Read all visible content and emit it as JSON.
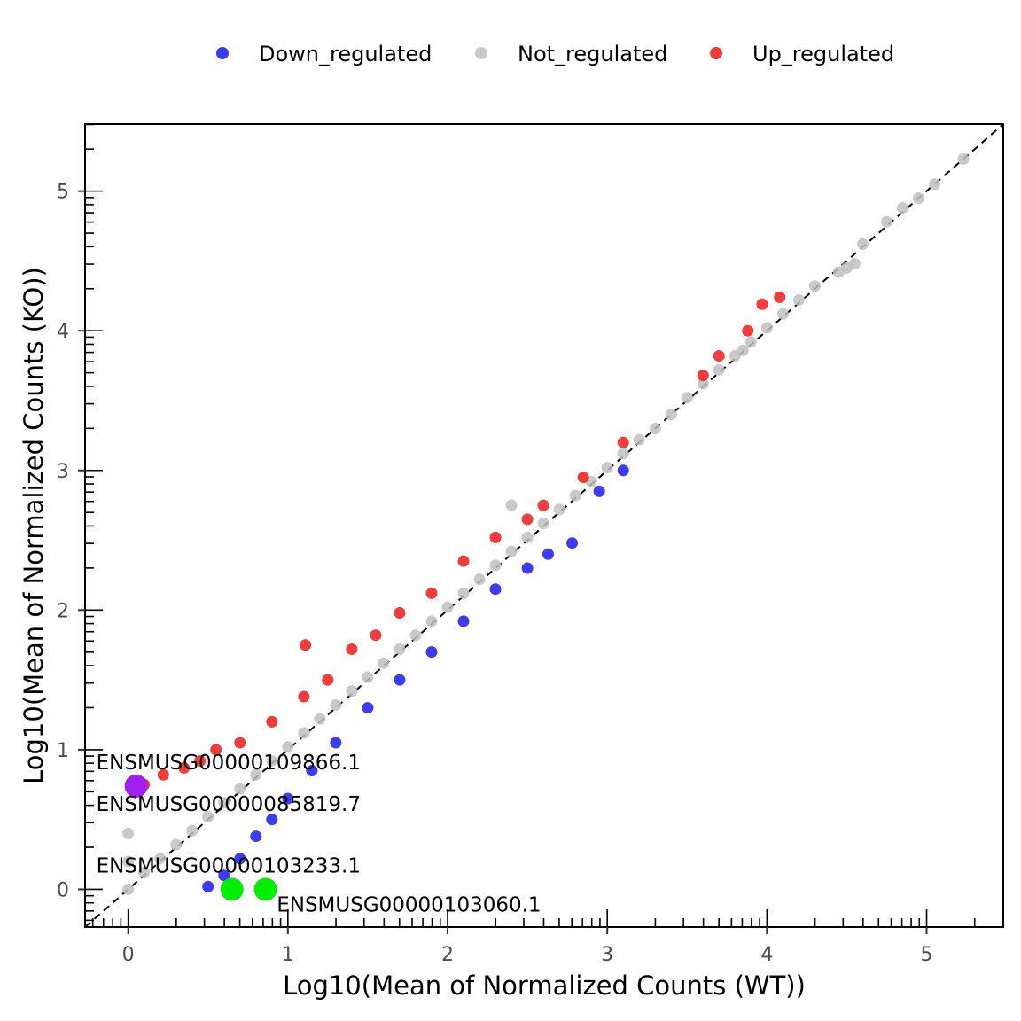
{
  "chart_data": {
    "type": "scatter",
    "xlabel": "Log10(Mean of Normalized Counts (WT))",
    "ylabel": "Log10(Mean of Normalized Counts (KO))",
    "xlim": [
      -0.27,
      5.48
    ],
    "ylim": [
      -0.27,
      5.48
    ],
    "x_ticks": [
      0,
      1,
      2,
      3,
      4,
      5
    ],
    "y_ticks": [
      0,
      1,
      2,
      3,
      4,
      5
    ],
    "x_tick_labels": [
      "0",
      "1",
      "2",
      "3",
      "4",
      "5"
    ],
    "y_tick_labels": [
      "0",
      "1",
      "2",
      "3",
      "4",
      "5"
    ],
    "log_minor_ticks": true,
    "grid": false,
    "reference_line": {
      "slope": 1,
      "intercept": 0,
      "style": "dashed",
      "color": "#000000"
    },
    "legend": {
      "placement": "top",
      "entries": [
        {
          "label": "Down_regulated",
          "color": "#1a1aee"
        },
        {
          "label": "Not_regulated",
          "color": "#c0c0c0"
        },
        {
          "label": "Up_regulated",
          "color": "#ee1a1a"
        }
      ]
    },
    "series": [
      {
        "name": "Not_regulated",
        "color": "#c0c0c0",
        "points": [
          [
            5.23,
            5.23
          ],
          [
            5.05,
            5.05
          ],
          [
            4.95,
            4.95
          ],
          [
            4.85,
            4.88
          ],
          [
            4.75,
            4.78
          ],
          [
            4.6,
            4.62
          ],
          [
            4.55,
            4.48
          ],
          [
            4.5,
            4.45
          ],
          [
            4.45,
            4.42
          ],
          [
            4.3,
            4.32
          ],
          [
            4.2,
            4.22
          ],
          [
            4.1,
            4.12
          ],
          [
            4.0,
            4.02
          ],
          [
            3.9,
            3.92
          ],
          [
            3.85,
            3.86
          ],
          [
            3.8,
            3.82
          ],
          [
            3.7,
            3.72
          ],
          [
            3.6,
            3.62
          ],
          [
            3.5,
            3.52
          ],
          [
            3.4,
            3.4
          ],
          [
            3.3,
            3.3
          ],
          [
            3.2,
            3.22
          ],
          [
            3.1,
            3.12
          ],
          [
            3.0,
            3.02
          ],
          [
            2.9,
            2.92
          ],
          [
            2.8,
            2.82
          ],
          [
            2.7,
            2.72
          ],
          [
            2.6,
            2.62
          ],
          [
            2.5,
            2.52
          ],
          [
            2.4,
            2.75
          ],
          [
            2.4,
            2.42
          ],
          [
            2.3,
            2.32
          ],
          [
            2.2,
            2.22
          ],
          [
            2.1,
            2.12
          ],
          [
            2.0,
            2.02
          ],
          [
            1.9,
            1.92
          ],
          [
            1.8,
            1.82
          ],
          [
            1.7,
            1.72
          ],
          [
            1.6,
            1.62
          ],
          [
            1.5,
            1.52
          ],
          [
            1.4,
            1.42
          ],
          [
            1.3,
            1.32
          ],
          [
            1.2,
            1.22
          ],
          [
            1.1,
            1.12
          ],
          [
            1.0,
            1.02
          ],
          [
            0.9,
            0.92
          ],
          [
            0.8,
            0.82
          ],
          [
            0.7,
            0.72
          ],
          [
            0.6,
            0.62
          ],
          [
            0.5,
            0.52
          ],
          [
            0.4,
            0.42
          ],
          [
            0.3,
            0.32
          ],
          [
            0.2,
            0.22
          ],
          [
            0.1,
            0.12
          ],
          [
            0.0,
            0.4
          ],
          [
            0.0,
            0.2
          ],
          [
            0.0,
            0.0
          ]
        ]
      },
      {
        "name": "Up_regulated",
        "color": "#ee1a1a",
        "points": [
          [
            4.08,
            4.24
          ],
          [
            3.97,
            4.19
          ],
          [
            3.88,
            4.0
          ],
          [
            3.7,
            3.82
          ],
          [
            3.6,
            3.68
          ],
          [
            3.1,
            3.2
          ],
          [
            2.85,
            2.95
          ],
          [
            2.6,
            2.75
          ],
          [
            2.5,
            2.65
          ],
          [
            2.3,
            2.52
          ],
          [
            2.1,
            2.35
          ],
          [
            1.9,
            2.12
          ],
          [
            1.7,
            1.98
          ],
          [
            1.55,
            1.82
          ],
          [
            1.4,
            1.72
          ],
          [
            1.11,
            1.75
          ],
          [
            1.25,
            1.5
          ],
          [
            1.1,
            1.38
          ],
          [
            0.9,
            1.2
          ],
          [
            0.7,
            1.05
          ],
          [
            0.55,
            1.0
          ],
          [
            0.45,
            0.92
          ],
          [
            0.35,
            0.87
          ],
          [
            0.22,
            0.82
          ],
          [
            0.1,
            0.75
          ],
          [
            0.05,
            0.7
          ]
        ]
      },
      {
        "name": "Down_regulated",
        "color": "#1a1aee",
        "points": [
          [
            3.1,
            3.0
          ],
          [
            2.95,
            2.85
          ],
          [
            2.78,
            2.48
          ],
          [
            2.63,
            2.4
          ],
          [
            2.5,
            2.3
          ],
          [
            2.3,
            2.15
          ],
          [
            2.1,
            1.92
          ],
          [
            1.9,
            1.7
          ],
          [
            1.7,
            1.5
          ],
          [
            1.5,
            1.3
          ],
          [
            1.3,
            1.05
          ],
          [
            1.15,
            0.85
          ],
          [
            1.0,
            0.65
          ],
          [
            0.9,
            0.5
          ],
          [
            0.8,
            0.38
          ],
          [
            0.7,
            0.22
          ],
          [
            0.6,
            0.1
          ],
          [
            0.5,
            0.02
          ]
        ]
      },
      {
        "name": "",
        "color": "#a020f0",
        "points": [
          [
            0.05,
            0.74
          ]
        ]
      },
      {
        "name": "",
        "color": "#00ee00",
        "points": [
          [
            0.65,
            0.0
          ],
          [
            0.86,
            0.0
          ]
        ]
      }
    ],
    "annotations": [
      {
        "text": "ENSMUSG00000109866.1",
        "x": -0.2,
        "y": 0.86
      },
      {
        "text": "ENSMUSG00000085819.7",
        "x": -0.2,
        "y": 0.56
      },
      {
        "text": "ENSMUSG00000103233.1",
        "x": -0.2,
        "y": 0.12
      },
      {
        "text": "ENSMUSG00000103060.1",
        "x": 0.93,
        "y": -0.16
      }
    ]
  }
}
